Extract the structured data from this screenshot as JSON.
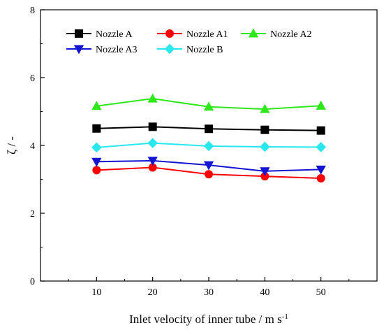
{
  "chart_data": {
    "type": "line",
    "title": "",
    "xlabel": "Inlet velocity of inner tube / m s",
    "xlabel_superscript": "-1",
    "ylabel": "ζ / -",
    "x": [
      10,
      20,
      30,
      40,
      50
    ],
    "xlim": [
      0,
      60
    ],
    "ylim": [
      0,
      8
    ],
    "xticks": [
      "10",
      "20",
      "30",
      "40",
      "50"
    ],
    "yticks": [
      "0",
      "2",
      "4",
      "6",
      "8"
    ],
    "grid": false,
    "legend_position": "top",
    "series": [
      {
        "name": "Nozzle A",
        "color": "#000000",
        "marker": "square",
        "values": [
          4.5,
          4.55,
          4.49,
          4.46,
          4.44
        ]
      },
      {
        "name": "Nozzle A1",
        "color": "#ff0000",
        "marker": "circle",
        "values": [
          3.27,
          3.35,
          3.15,
          3.09,
          3.03
        ]
      },
      {
        "name": "Nozzle A2",
        "color": "#2ee81a",
        "marker": "triangle-up",
        "values": [
          5.16,
          5.38,
          5.14,
          5.07,
          5.17
        ]
      },
      {
        "name": "Nozzle A3",
        "color": "#1414d2",
        "marker": "triangle-down",
        "values": [
          3.52,
          3.55,
          3.42,
          3.24,
          3.29
        ]
      },
      {
        "name": "Nozzle B",
        "color": "#28e8ee",
        "marker": "diamond",
        "values": [
          3.94,
          4.07,
          3.98,
          3.96,
          3.95
        ]
      }
    ]
  }
}
